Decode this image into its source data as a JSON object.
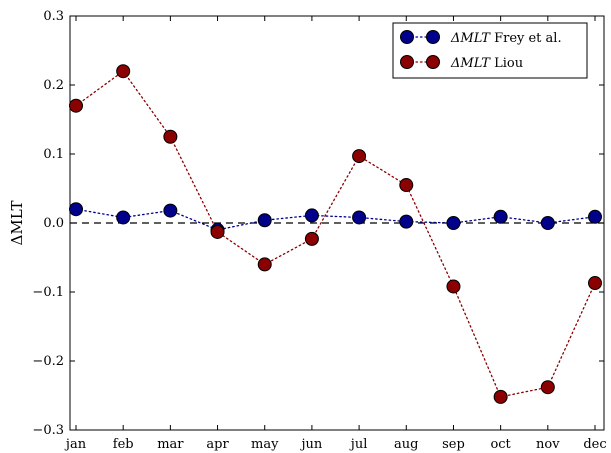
{
  "chart_data": {
    "type": "line",
    "title": "",
    "xlabel": "",
    "ylabel": "ΔMLT",
    "categories": [
      "jan",
      "feb",
      "mar",
      "apr",
      "may",
      "jun",
      "jul",
      "aug",
      "sep",
      "oct",
      "nov",
      "dec"
    ],
    "ylim": [
      -0.3,
      0.3
    ],
    "yticks": [
      0.3,
      0.2,
      0.1,
      0.0,
      -0.1,
      -0.2,
      -0.3
    ],
    "ytick_labels": [
      "0.3",
      "0.2",
      "0.1",
      "0.0",
      "−0.1",
      "−0.2",
      "−0.3"
    ],
    "reference_line": {
      "y": 0.0,
      "style": "dashed"
    },
    "grid": false,
    "legend_position": "top-right",
    "series": [
      {
        "name_prefix": "ΔMLT",
        "name_suffix": " Frey et al.",
        "color": "#00008b",
        "line_style": "dotted",
        "marker": "circle",
        "values": [
          0.02,
          0.008,
          0.018,
          -0.01,
          0.004,
          0.011,
          0.008,
          0.002,
          0.0,
          0.009,
          0.0,
          0.009
        ]
      },
      {
        "name_prefix": "ΔMLT",
        "name_suffix": " Liou",
        "color": "#8b0000",
        "line_style": "dotted",
        "marker": "circle",
        "values": [
          0.17,
          0.22,
          0.125,
          -0.013,
          -0.06,
          -0.023,
          0.097,
          0.055,
          -0.092,
          -0.252,
          -0.238,
          -0.087
        ]
      }
    ]
  }
}
